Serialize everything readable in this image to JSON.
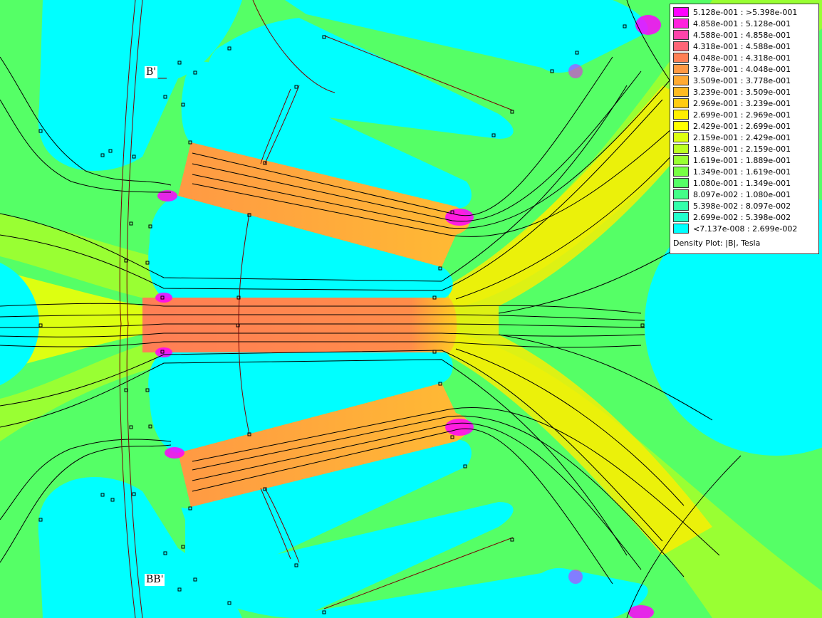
{
  "plot": {
    "title": "Density Plot: |B|, Tesla",
    "section_labels": [
      "B'",
      "BB'"
    ]
  },
  "legend": {
    "rows": [
      {
        "range": "5.128e-001 : >5.398e-001",
        "color": "#ff00ff"
      },
      {
        "range": "4.858e-001 : 5.128e-001",
        "color": "#ff22dd"
      },
      {
        "range": "4.588e-001 : 4.858e-001",
        "color": "#ff44aa"
      },
      {
        "range": "4.318e-001 : 4.588e-001",
        "color": "#ff6677"
      },
      {
        "range": "4.048e-001 : 4.318e-001",
        "color": "#ff7f55"
      },
      {
        "range": "3.778e-001 : 4.048e-001",
        "color": "#ff9944"
      },
      {
        "range": "3.509e-001 : 3.778e-001",
        "color": "#ffaa33"
      },
      {
        "range": "3.239e-001 : 3.509e-001",
        "color": "#ffbb22"
      },
      {
        "range": "2.969e-001 : 3.239e-001",
        "color": "#ffcc11"
      },
      {
        "range": "2.699e-001 : 2.969e-001",
        "color": "#ffee00"
      },
      {
        "range": "2.429e-001 : 2.699e-001",
        "color": "#ffff00"
      },
      {
        "range": "2.159e-001 : 2.429e-001",
        "color": "#ddff11"
      },
      {
        "range": "1.889e-001 : 2.159e-001",
        "color": "#bbff22"
      },
      {
        "range": "1.619e-001 : 1.889e-001",
        "color": "#99ff33"
      },
      {
        "range": "1.349e-001 : 1.619e-001",
        "color": "#77ff44"
      },
      {
        "range": "1.080e-001 : 1.349e-001",
        "color": "#55ff66"
      },
      {
        "range": "8.097e-002 : 1.080e-001",
        "color": "#44ff88"
      },
      {
        "range": "5.398e-002 : 8.097e-002",
        "color": "#33ffaa"
      },
      {
        "range": "2.699e-002 : 5.398e-002",
        "color": "#22ffcc"
      },
      {
        "range": "<7.137e-008 : 2.699e-002",
        "color": "#00ffff"
      }
    ]
  },
  "colors": {
    "air": "#00ffff",
    "low_field": "#44ff88",
    "mid_field": "#99ff33",
    "high_field": "#ffdd00",
    "tooth_field": "#ff9944",
    "peak_field": "#ff7f55",
    "saturation": "#ff00ff",
    "flux_line": "#000000",
    "boundary_line": "#7a0000"
  }
}
